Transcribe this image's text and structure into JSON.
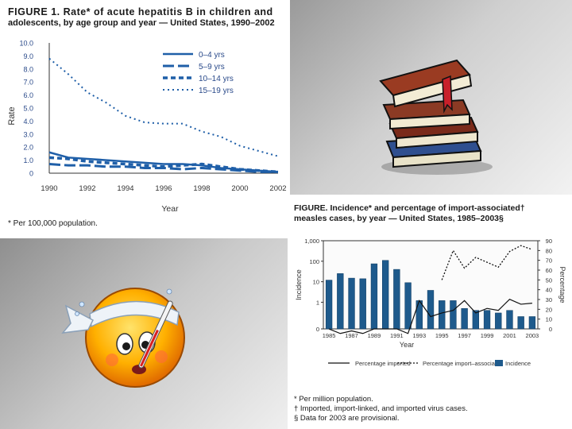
{
  "left_figure": {
    "title_line1": "FIGURE 1. Rate* of acute hepatitis B in children and",
    "title_line2": "adolescents, by age group and year — United States, 1990–2002",
    "footnote": "* Per 100,000 population."
  },
  "right_figure": {
    "title_line1": "FIGURE. Incidence* and percentage of import-associated†",
    "title_line2": "measles cases, by year — United States, 1985–2003§",
    "footnotes": [
      "* Per million population.",
      "† Imported, import-linked, and imported virus cases.",
      "§ Data for 2003 are provisional."
    ]
  },
  "decorations": {
    "books_icon": "stack-of-books-illustration",
    "sick_icon": "sick-emoji-with-thermometer"
  },
  "chart_data": [
    {
      "type": "line",
      "xlabel": "Year",
      "ylabel": "Rate",
      "xlim": [
        1990,
        2002
      ],
      "ylim": [
        0,
        10
      ],
      "x_ticks": [
        "1990",
        "1992",
        "1994",
        "1996",
        "1998",
        "2000",
        "2002"
      ],
      "y_ticks": [
        "0",
        "1.0",
        "2.0",
        "3.0",
        "4.0",
        "5.0",
        "6.0",
        "7.0",
        "8.0",
        "9.0",
        "10.0"
      ],
      "legend_position": "top-right",
      "x": [
        1990,
        1991,
        1992,
        1993,
        1994,
        1995,
        1996,
        1997,
        1998,
        1999,
        2000,
        2001,
        2002
      ],
      "series": [
        {
          "name": "0–4 yrs",
          "style": "solid",
          "values": [
            1.6,
            1.2,
            1.1,
            1.0,
            0.9,
            0.8,
            0.7,
            0.7,
            0.6,
            0.4,
            0.3,
            0.2,
            0.1
          ]
        },
        {
          "name": "5–9 yrs",
          "style": "long-dash",
          "values": [
            0.7,
            0.6,
            0.6,
            0.5,
            0.5,
            0.4,
            0.4,
            0.3,
            0.4,
            0.3,
            0.2,
            0.1,
            0.1
          ]
        },
        {
          "name": "10–14 yrs",
          "style": "short-dash",
          "values": [
            1.2,
            1.1,
            0.9,
            0.8,
            0.7,
            0.6,
            0.5,
            0.6,
            0.7,
            0.5,
            0.3,
            0.2,
            0.1
          ]
        },
        {
          "name": "15–19 yrs",
          "style": "dotted",
          "values": [
            8.8,
            7.6,
            6.2,
            5.4,
            4.4,
            3.9,
            3.8,
            3.8,
            3.2,
            2.8,
            2.1,
            1.7,
            1.3
          ]
        }
      ]
    },
    {
      "type": "bar",
      "xlabel": "Year",
      "ylabel": "Incidence",
      "y2label": "Percentage",
      "x": [
        1985,
        1986,
        1987,
        1988,
        1989,
        1990,
        1991,
        1992,
        1993,
        1994,
        1995,
        1996,
        1997,
        1998,
        1999,
        2000,
        2001,
        2002,
        2003
      ],
      "x_ticks": [
        "1985",
        "1987",
        "1989",
        "1991",
        "1993",
        "1995",
        "1997",
        "1999",
        "2001",
        "2003"
      ],
      "y_scale": "log",
      "ylim": [
        0,
        1000
      ],
      "y_ticks": [
        "0",
        "1",
        "10",
        "100",
        "1,000"
      ],
      "y2lim": [
        0,
        90
      ],
      "y2_ticks": [
        "0",
        "10",
        "20",
        "30",
        "40",
        "50",
        "60",
        "70",
        "80",
        "90"
      ],
      "legend_position": "bottom",
      "series": [
        {
          "name": "Incidence",
          "kind": "bar",
          "axis": "left",
          "values": [
            12,
            25,
            15,
            14,
            75,
            110,
            40,
            9,
            1.2,
            3.8,
            1.2,
            1.2,
            0.5,
            0.4,
            0.4,
            0.3,
            0.4,
            0.2,
            0.2
          ]
        },
        {
          "name": "Percentage imported",
          "kind": "line",
          "axis": "left",
          "values": [
            0.05,
            0.03,
            0.04,
            0.03,
            0.02,
            0.02,
            0.02,
            0.03,
            1.2,
            0.2,
            0.3,
            0.4,
            1.2,
            0.3,
            0.5,
            0.4,
            1.4,
            0.8,
            0.9
          ]
        },
        {
          "name": "Percentage import–associated",
          "kind": "line",
          "axis": "right",
          "values": [
            null,
            null,
            null,
            null,
            null,
            null,
            null,
            null,
            null,
            null,
            50,
            80,
            62,
            73,
            68,
            63,
            79,
            85,
            81
          ]
        }
      ]
    }
  ]
}
